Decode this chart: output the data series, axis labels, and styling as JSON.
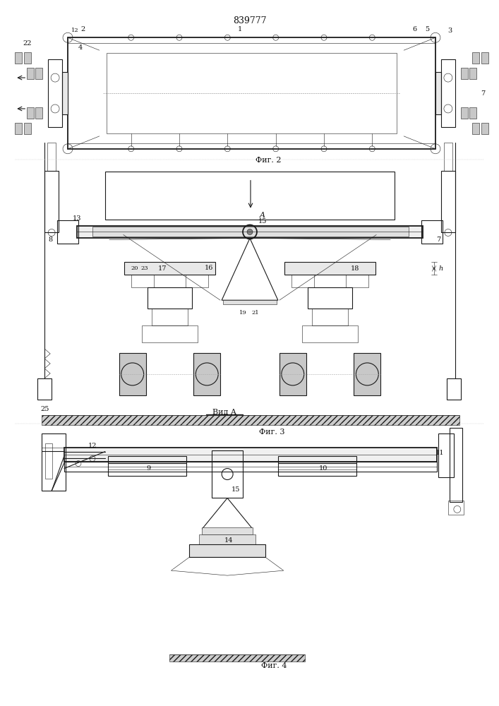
{
  "title": "839777",
  "bg_color": "#ffffff",
  "line_color": "#1a1a1a",
  "caption1": "Фиг. 2",
  "caption2": "Фиг. 3",
  "caption3": "Вид A",
  "caption4": "Фиг. 4",
  "arrow_label": "A"
}
